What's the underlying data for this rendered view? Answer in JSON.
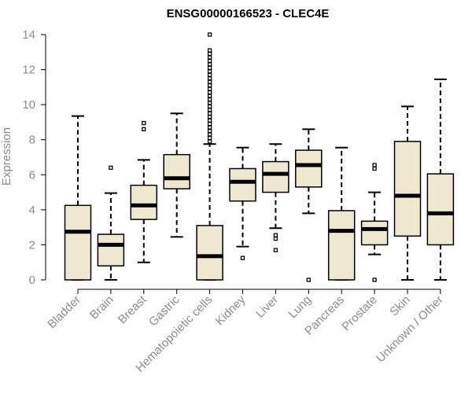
{
  "chart_data": {
    "type": "boxplot",
    "title": "ENSG00000166523 - CLEC4E",
    "xlabel": "",
    "ylabel": "Expression",
    "ylim": [
      0,
      14
    ],
    "yticks": [
      0,
      2,
      4,
      6,
      8,
      10,
      12,
      14
    ],
    "grid": false,
    "colors": {
      "box_fill": "#efe8d0",
      "stroke": "#000000",
      "tick_text": "#8c8c8c",
      "title": "#000000"
    },
    "categories": [
      "Bladder",
      "Brain",
      "Breast",
      "Gastric",
      "Hematopoietic cells",
      "Kidney",
      "Liver",
      "Lung",
      "Pancreas",
      "Prostate",
      "Skin",
      "Unknown / Other"
    ],
    "boxes": [
      {
        "category": "Bladder",
        "whisker_low": 0,
        "q1": 0,
        "median": 2.75,
        "q3": 4.25,
        "whisker_high": 9.35,
        "outliers": []
      },
      {
        "category": "Brain",
        "whisker_low": 0,
        "q1": 0.8,
        "median": 2.0,
        "q3": 2.6,
        "whisker_high": 4.95,
        "outliers": [
          6.4
        ]
      },
      {
        "category": "Breast",
        "whisker_low": 1.0,
        "q1": 3.45,
        "median": 4.25,
        "q3": 5.4,
        "whisker_high": 6.85,
        "outliers": [
          8.6,
          8.95
        ]
      },
      {
        "category": "Gastric",
        "whisker_low": 2.45,
        "q1": 5.2,
        "median": 5.8,
        "q3": 7.15,
        "whisker_high": 9.5,
        "outliers": []
      },
      {
        "category": "Hematopoietic cells",
        "whisker_low": 0,
        "q1": 0,
        "median": 1.35,
        "q3": 3.1,
        "whisker_high": 7.75,
        "outliers": [
          7.9,
          8.1,
          8.3,
          8.5,
          8.7,
          8.9,
          9.1,
          9.3,
          9.5,
          9.7,
          9.9,
          10.1,
          10.3,
          10.5,
          10.7,
          10.9,
          11.1,
          11.3,
          11.5,
          11.7,
          11.9,
          12.1,
          12.3,
          12.5,
          12.7,
          12.9,
          13.1,
          14.0
        ]
      },
      {
        "category": "Kidney",
        "whisker_low": 1.9,
        "q1": 4.5,
        "median": 5.6,
        "q3": 6.35,
        "whisker_high": 7.55,
        "outliers": [
          1.25
        ]
      },
      {
        "category": "Liver",
        "whisker_low": 2.95,
        "q1": 5.0,
        "median": 6.05,
        "q3": 6.75,
        "whisker_high": 7.75,
        "outliers": [
          2.55,
          2.35,
          1.7
        ]
      },
      {
        "category": "Lung",
        "whisker_low": 3.8,
        "q1": 5.3,
        "median": 6.55,
        "q3": 7.4,
        "whisker_high": 8.6,
        "outliers": [
          0
        ]
      },
      {
        "category": "Pancreas",
        "whisker_low": 0,
        "q1": 0,
        "median": 2.8,
        "q3": 3.95,
        "whisker_high": 7.55,
        "outliers": []
      },
      {
        "category": "Prostate",
        "whisker_low": 1.45,
        "q1": 2.0,
        "median": 2.9,
        "q3": 3.35,
        "whisker_high": 5.0,
        "outliers": [
          6.55,
          6.35,
          0
        ]
      },
      {
        "category": "Skin",
        "whisker_low": 0,
        "q1": 2.5,
        "median": 4.8,
        "q3": 7.9,
        "whisker_high": 9.9,
        "outliers": []
      },
      {
        "category": "Unknown / Other",
        "whisker_low": 0,
        "q1": 2.0,
        "median": 3.8,
        "q3": 6.05,
        "whisker_high": 11.45,
        "outliers": []
      }
    ]
  }
}
